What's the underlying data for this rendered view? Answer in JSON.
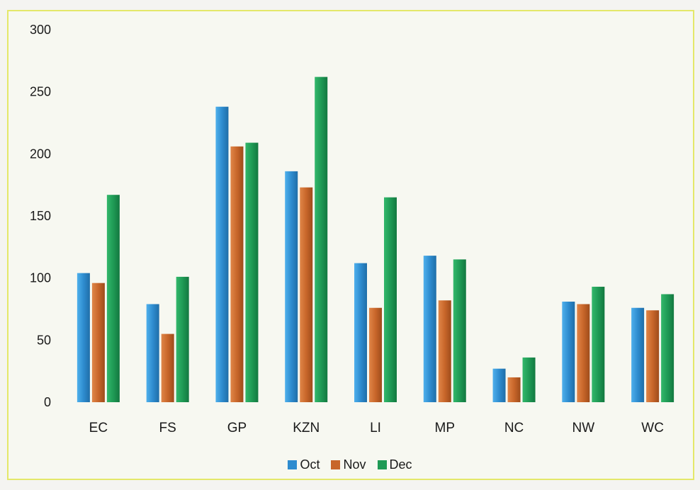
{
  "chart_data": {
    "type": "bar",
    "categories": [
      "EC",
      "FS",
      "GP",
      "KZN",
      "LI",
      "MP",
      "NC",
      "NW",
      "WC"
    ],
    "series": [
      {
        "name": "Oct",
        "color": "#2e8ccf",
        "values": [
          104,
          79,
          238,
          186,
          112,
          118,
          27,
          81,
          76
        ]
      },
      {
        "name": "Nov",
        "color": "#c8662a",
        "values": [
          96,
          55,
          206,
          173,
          76,
          82,
          20,
          79,
          74
        ]
      },
      {
        "name": "Dec",
        "color": "#1f9a55",
        "values": [
          167,
          101,
          209,
          262,
          165,
          115,
          36,
          93,
          87
        ]
      }
    ],
    "ylim": [
      0,
      300
    ],
    "yticks": [
      0,
      50,
      100,
      150,
      200,
      250,
      300
    ],
    "legend_position": "bottom",
    "grid": false
  }
}
